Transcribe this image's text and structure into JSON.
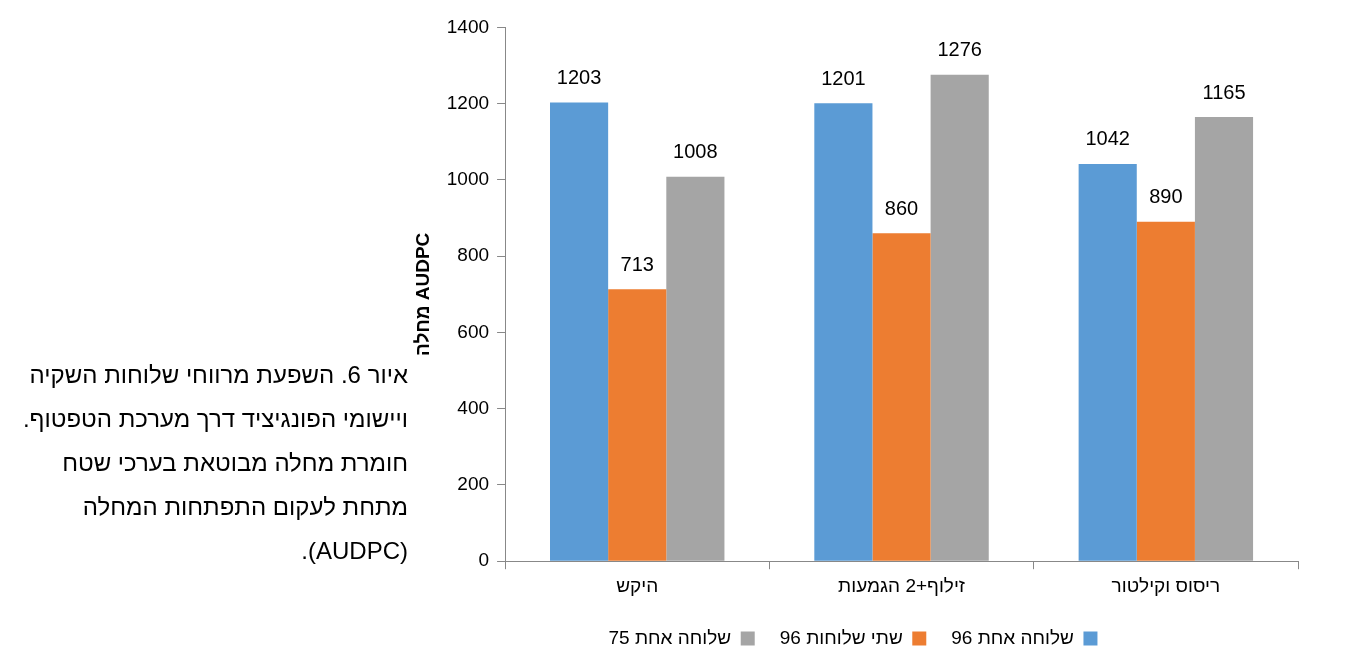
{
  "chart_data": {
    "type": "bar",
    "ylabel": "מחלה AUDPC",
    "categories": [
      "היקש",
      "זילוף+2 הגמעות",
      "ריסוס וקילטור"
    ],
    "series": [
      {
        "name": "96 שלוחה אחת",
        "color": "#5b9bd5",
        "values": [
          1203,
          1201,
          1042
        ]
      },
      {
        "name": "96 שתי שלוחות",
        "color": "#ed7d31",
        "values": [
          713,
          860,
          890
        ]
      },
      {
        "name": "75 שלוחה אחת",
        "color": "#a5a5a5",
        "values": [
          1008,
          1276,
          1165
        ]
      }
    ],
    "ylim": [
      0,
      1400
    ],
    "yticks": [
      0,
      200,
      400,
      600,
      800,
      1000,
      1200,
      1400
    ],
    "grid": false,
    "legend": "bottom",
    "data_labels": true,
    "annotations": [
      "איור 6. השפעת מרווחי שלוחות השקיה ויישומי הפונגיציד דרך מערכת הטפטוף. חומרת מחלה מבוטאת בערכי שטח מתחת לעקום התפתחות המחלה (AUDPC)."
    ]
  }
}
